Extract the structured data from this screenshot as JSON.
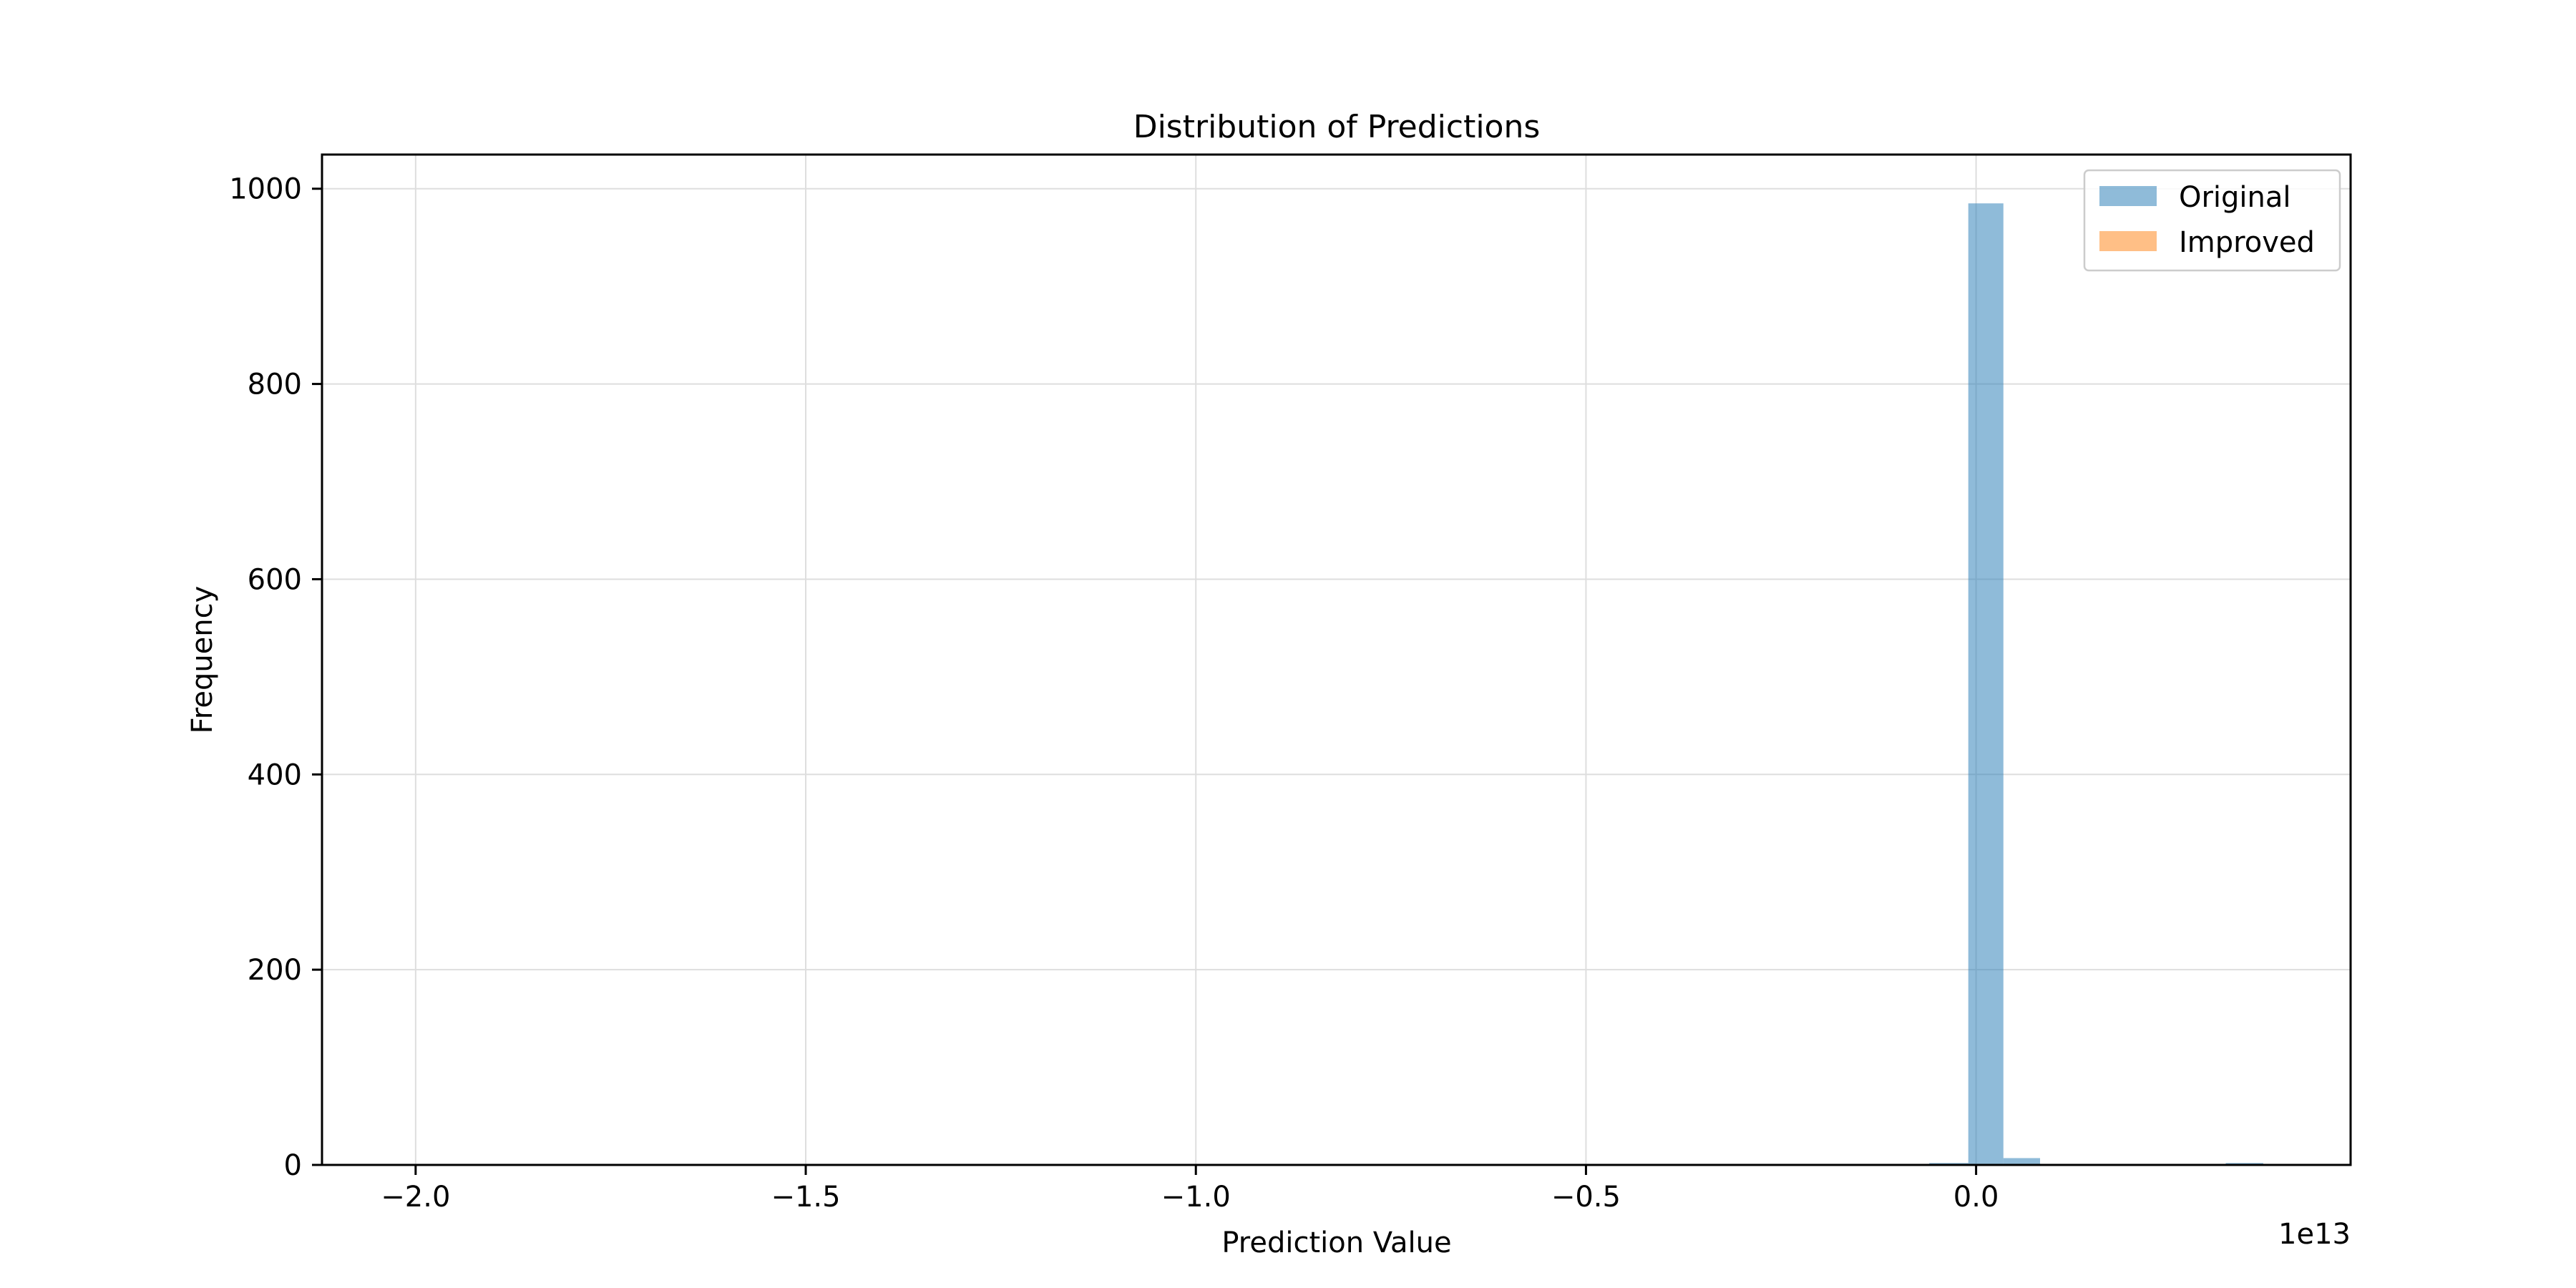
{
  "chart_data": {
    "type": "bar",
    "title": "Distribution of Predictions",
    "xlabel": "Prediction Value",
    "ylabel": "Frequency",
    "x_offset_label": "1e13",
    "xlim": [
      -2.12,
      0.48
    ],
    "ylim": [
      0,
      1035
    ],
    "xticks": [
      -2.0,
      -1.5,
      -1.0,
      -0.5,
      0.0
    ],
    "xtick_labels": [
      "−2.0",
      "−1.5",
      "−1.0",
      "−0.5",
      "0.0"
    ],
    "yticks": [
      0,
      200,
      400,
      600,
      800,
      1000
    ],
    "ytick_labels": [
      "0",
      "200",
      "400",
      "600",
      "800",
      "1000"
    ],
    "grid": true,
    "legend_position": "upper-right",
    "series": [
      {
        "name": "Original",
        "color": "#1f77b4",
        "opacity": 0.5,
        "bins": [
          {
            "x0": -0.06,
            "x1": -0.01,
            "value": 2
          },
          {
            "x0": -0.01,
            "x1": 0.035,
            "value": 985
          },
          {
            "x0": 0.035,
            "x1": 0.082,
            "value": 7
          },
          {
            "x0": 0.32,
            "x1": 0.368,
            "value": 2
          }
        ]
      },
      {
        "name": "Improved",
        "color": "#ff7f0e",
        "opacity": 0.5,
        "bins": []
      }
    ]
  }
}
